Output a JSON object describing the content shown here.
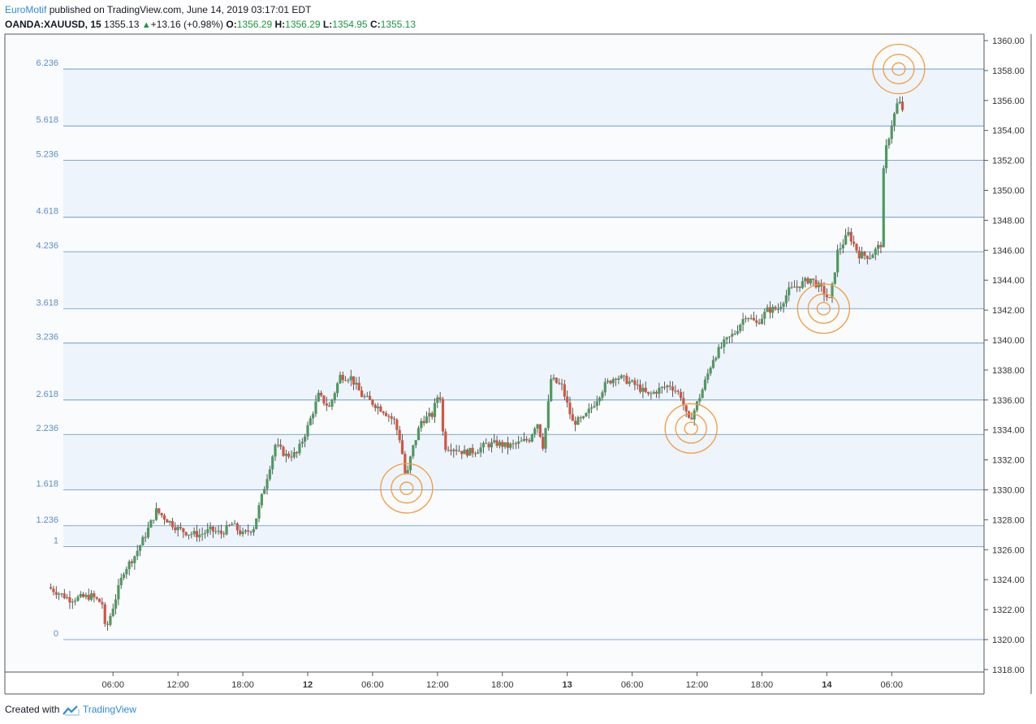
{
  "header": {
    "author": "EuroMotif",
    "published_text": "published on TradingView.com, June 14, 2019 03:17:01 EDT",
    "symbol": "OANDA:XAUUSD, 15",
    "last": "1355.13",
    "change": "+13.16 (+0.98%)",
    "o_label": "O:",
    "o": "1356.29",
    "h_label": "H:",
    "h": "1356.29",
    "l_label": "L:",
    "l": "1354.95",
    "c_label": "C:",
    "c": "1355.13"
  },
  "footer": {
    "created_with": "Created with",
    "brand": "TradingView"
  },
  "colors": {
    "up": "#4d9a5f",
    "down": "#d0573f",
    "fib_line": "#5b8fc4",
    "fib_label": "#5b8fc4",
    "band": "#eef4fb",
    "circle": "#f29b3a",
    "axis": "#555555"
  },
  "chart_data": {
    "type": "candlestick",
    "title": "",
    "ylim": [
      1318,
      1360
    ],
    "y_ticks": [
      "1318.00",
      "1320.00",
      "1322.00",
      "1324.00",
      "1326.00",
      "1328.00",
      "1330.00",
      "1332.00",
      "1334.00",
      "1336.00",
      "1338.00",
      "1340.00",
      "1342.00",
      "1344.00",
      "1346.00",
      "1348.00",
      "1350.00",
      "1352.00",
      "1354.00",
      "1356.00",
      "1358.00",
      "1360.00"
    ],
    "x_ticks": [
      {
        "label": "06:00",
        "bold": false,
        "t": 6
      },
      {
        "label": "12:00",
        "bold": false,
        "t": 12
      },
      {
        "label": "18:00",
        "bold": false,
        "t": 18
      },
      {
        "label": "12",
        "bold": true,
        "t": 24
      },
      {
        "label": "06:00",
        "bold": false,
        "t": 30
      },
      {
        "label": "12:00",
        "bold": false,
        "t": 36
      },
      {
        "label": "18:00",
        "bold": false,
        "t": 42
      },
      {
        "label": "13",
        "bold": true,
        "t": 48
      },
      {
        "label": "06:00",
        "bold": false,
        "t": 54
      },
      {
        "label": "12:00",
        "bold": false,
        "t": 60
      },
      {
        "label": "18:00",
        "bold": false,
        "t": 66
      },
      {
        "label": "14",
        "bold": true,
        "t": 72
      },
      {
        "label": "06:00",
        "bold": false,
        "t": 78
      }
    ],
    "fib_levels": [
      {
        "label": "0",
        "price": 1320.0
      },
      {
        "label": "1",
        "price": 1326.2
      },
      {
        "label": "1.236",
        "price": 1327.6
      },
      {
        "label": "1.618",
        "price": 1330.0
      },
      {
        "label": "2.236",
        "price": 1333.7
      },
      {
        "label": "2.618",
        "price": 1336.0
      },
      {
        "label": "3.236",
        "price": 1339.8
      },
      {
        "label": "3.618",
        "price": 1342.1
      },
      {
        "label": "4.236",
        "price": 1345.9
      },
      {
        "label": "4.618",
        "price": 1348.2
      },
      {
        "label": "5.236",
        "price": 1352.0
      },
      {
        "label": "5.618",
        "price": 1354.3
      },
      {
        "label": "6.236",
        "price": 1358.1
      }
    ],
    "bands": [
      [
        1326.2,
        1327.6
      ],
      [
        1330.0,
        1333.7
      ],
      [
        1336.0,
        1339.8
      ],
      [
        1342.1,
        1345.9
      ],
      [
        1348.2,
        1352.0
      ],
      [
        1354.3,
        1358.1
      ]
    ],
    "highlights": [
      {
        "t": 33.15,
        "price": 1330.1
      },
      {
        "t": 59.45,
        "price": 1334.1
      },
      {
        "t": 71.7,
        "price": 1342.1
      },
      {
        "t": 78.65,
        "price": 1358.1
      }
    ],
    "price_path": [
      [
        0,
        1323.5
      ],
      [
        2,
        1322.7
      ],
      [
        4,
        1322.9
      ],
      [
        5,
        1322.4
      ],
      [
        5.3,
        1320.5
      ],
      [
        6,
        1322.2
      ],
      [
        7,
        1324.6
      ],
      [
        8,
        1325.6
      ],
      [
        9,
        1327.0
      ],
      [
        10,
        1328.6
      ],
      [
        11,
        1328.0
      ],
      [
        12,
        1327.4
      ],
      [
        13,
        1327.1
      ],
      [
        14,
        1327.0
      ],
      [
        15,
        1327.3
      ],
      [
        16,
        1327.1
      ],
      [
        17,
        1327.7
      ],
      [
        18,
        1327.0
      ],
      [
        19,
        1327.5
      ],
      [
        20,
        1330.2
      ],
      [
        21,
        1333.0
      ],
      [
        22,
        1332.3
      ],
      [
        23,
        1332.4
      ],
      [
        24,
        1334.2
      ],
      [
        25,
        1336.3
      ],
      [
        26,
        1335.5
      ],
      [
        27,
        1337.6
      ],
      [
        28,
        1337.5
      ],
      [
        29,
        1336.3
      ],
      [
        30,
        1335.8
      ],
      [
        31,
        1335.3
      ],
      [
        32,
        1334.6
      ],
      [
        32.6,
        1333.2
      ],
      [
        33.1,
        1330.6
      ],
      [
        33.6,
        1332.5
      ],
      [
        34.5,
        1334.6
      ],
      [
        35.5,
        1335.0
      ],
      [
        36.2,
        1336.7
      ],
      [
        36.6,
        1332.9
      ],
      [
        37.5,
        1332.8
      ],
      [
        38.5,
        1332.5
      ],
      [
        39.5,
        1332.6
      ],
      [
        40.5,
        1333.0
      ],
      [
        41.5,
        1333.1
      ],
      [
        42.5,
        1332.9
      ],
      [
        43.5,
        1333.1
      ],
      [
        44.5,
        1333.4
      ],
      [
        45.2,
        1334.6
      ],
      [
        45.8,
        1332.8
      ],
      [
        46.5,
        1337.4
      ],
      [
        47.5,
        1336.9
      ],
      [
        48.5,
        1334.5
      ],
      [
        49.5,
        1334.7
      ],
      [
        50.5,
        1335.8
      ],
      [
        51.5,
        1337.0
      ],
      [
        52.5,
        1337.6
      ],
      [
        53.5,
        1337.3
      ],
      [
        54.5,
        1336.9
      ],
      [
        55.5,
        1336.3
      ],
      [
        56.5,
        1336.7
      ],
      [
        57.5,
        1337.0
      ],
      [
        58.5,
        1336.3
      ],
      [
        59.2,
        1334.5
      ],
      [
        59.8,
        1335.4
      ],
      [
        60.5,
        1336.7
      ],
      [
        61.5,
        1338.8
      ],
      [
        62.5,
        1339.8
      ],
      [
        63.5,
        1340.5
      ],
      [
        64.5,
        1341.7
      ],
      [
        65.5,
        1341.1
      ],
      [
        66.5,
        1342.0
      ],
      [
        67.5,
        1342.1
      ],
      [
        68.5,
        1343.3
      ],
      [
        69.5,
        1343.7
      ],
      [
        70.5,
        1344.1
      ],
      [
        71.5,
        1343.4
      ],
      [
        72.3,
        1342.6
      ],
      [
        73,
        1345.9
      ],
      [
        74,
        1347.1
      ],
      [
        75,
        1345.7
      ],
      [
        76,
        1345.6
      ],
      [
        77,
        1346.4
      ],
      [
        77.3,
        1352.2
      ],
      [
        78,
        1354.4
      ],
      [
        78.6,
        1356.0
      ],
      [
        79.2,
        1355.13
      ]
    ]
  }
}
